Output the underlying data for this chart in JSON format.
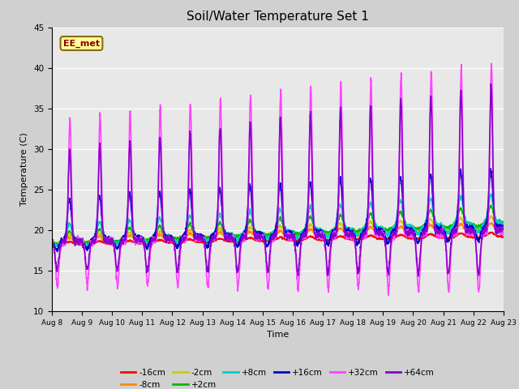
{
  "title": "Soil/Water Temperature Set 1",
  "xlabel": "Time",
  "ylabel": "Temperature (C)",
  "ylim": [
    10,
    45
  ],
  "x_tick_labels": [
    "Aug 8",
    "Aug 9",
    "Aug 10",
    "Aug 11",
    "Aug 12",
    "Aug 13",
    "Aug 14",
    "Aug 15",
    "Aug 16",
    "Aug 17",
    "Aug 18",
    "Aug 19",
    "Aug 20",
    "Aug 21",
    "Aug 22",
    "Aug 23"
  ],
  "fig_bg_color": "#d0d0d0",
  "plot_bg_color": "#e8e8e8",
  "annotation_text": "EE_met",
  "annotation_bg": "#ffff99",
  "annotation_border": "#8b6914",
  "series": {
    "-16cm": {
      "color": "#ff0000",
      "lw": 1.2
    },
    "-8cm": {
      "color": "#ff8800",
      "lw": 1.2
    },
    "-2cm": {
      "color": "#cccc00",
      "lw": 1.2
    },
    "+2cm": {
      "color": "#00bb00",
      "lw": 1.2
    },
    "+8cm": {
      "color": "#00cccc",
      "lw": 1.2
    },
    "+16cm": {
      "color": "#0000cc",
      "lw": 1.2
    },
    "+32cm": {
      "color": "#ff44ff",
      "lw": 1.2
    },
    "+64cm": {
      "color": "#8800cc",
      "lw": 1.2
    }
  },
  "legend_order": [
    "-16cm",
    "-8cm",
    "-2cm",
    "+2cm",
    "+8cm",
    "+16cm",
    "+32cm",
    "+64cm"
  ]
}
